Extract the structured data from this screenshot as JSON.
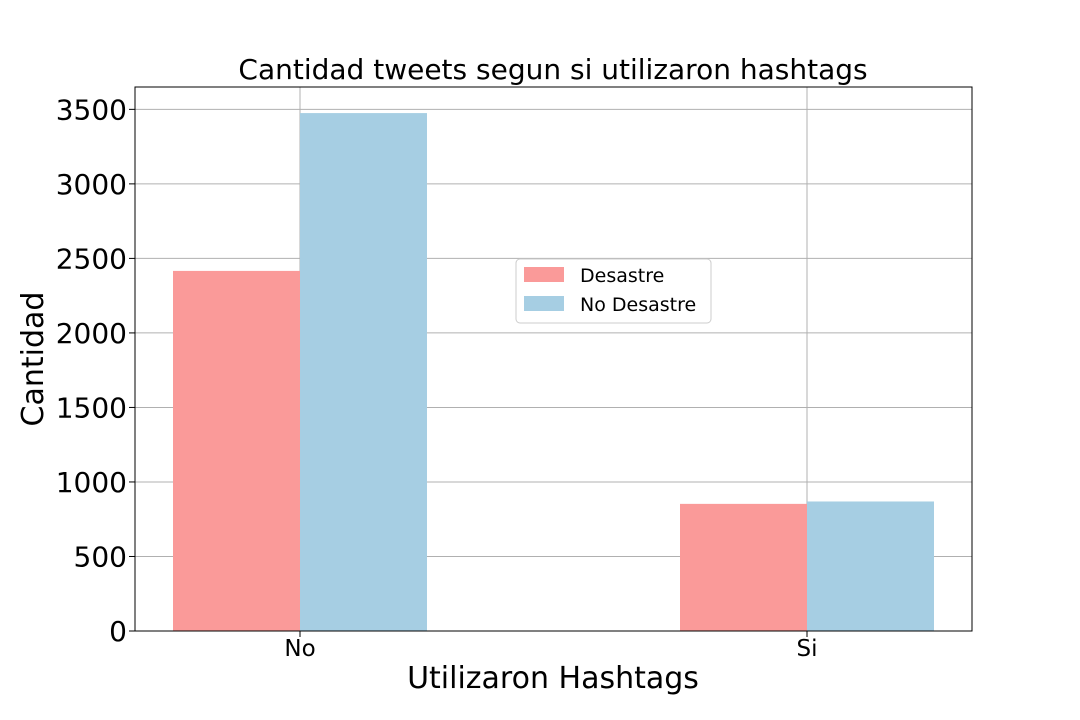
{
  "chart_data": {
    "type": "bar",
    "title": "Cantidad tweets segun si utilizaron hashtags",
    "xlabel": "Utilizaron Hashtags",
    "ylabel": "Cantidad",
    "categories": [
      "No",
      "Si"
    ],
    "series": [
      {
        "name": "Desastre",
        "values": [
          2416,
          853
        ],
        "color": "#fa9a99"
      },
      {
        "name": "No Desastre",
        "values": [
          3475,
          869
        ],
        "color": "#a6cee3"
      }
    ],
    "ylim": [
      0,
      3650
    ],
    "yticks": [
      0,
      500,
      1000,
      1500,
      2000,
      2500,
      3000,
      3500
    ],
    "grid": true,
    "legend_position": "center"
  }
}
